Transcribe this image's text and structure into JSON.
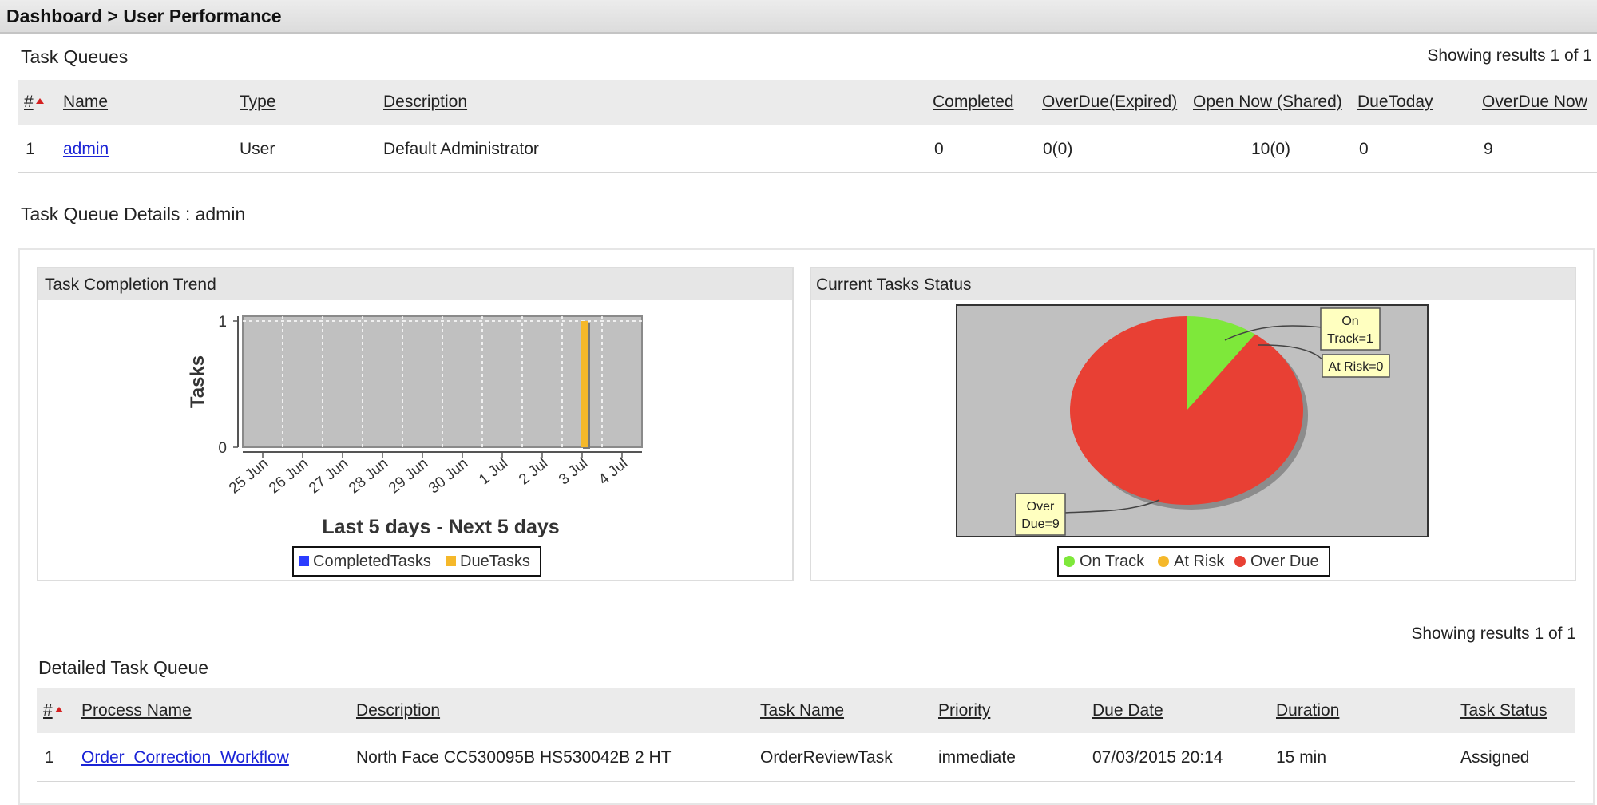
{
  "breadcrumb": {
    "root": "Dashboard",
    "separator": ">",
    "current": "User Performance"
  },
  "task_queues": {
    "title": "Task Queues",
    "results": "Showing results 1 of 1",
    "columns": [
      "#",
      "Name",
      "Type",
      "Description",
      "Completed",
      "OverDue(Expired)",
      "Open Now (Shared)",
      "DueToday",
      "OverDue Now"
    ],
    "rows": [
      {
        "num": "1",
        "name": "admin",
        "type": "User",
        "description": "Default Administrator",
        "completed": "0",
        "overdue_expired": "0(0)",
        "open_now_shared": "10(0)",
        "due_today": "0",
        "overdue_now": "9"
      }
    ]
  },
  "details": {
    "title": "Task Queue Details : admin",
    "trend_panel": {
      "title": "Task Completion Trend"
    },
    "status_panel": {
      "title": "Current Tasks Status"
    }
  },
  "chart_data": [
    {
      "type": "bar",
      "title": "",
      "xlabel": "Last 5 days - Next 5 days",
      "ylabel": "Tasks",
      "categories": [
        "25 Jun",
        "26 Jun",
        "27 Jun",
        "28 Jun",
        "29 Jun",
        "30 Jun",
        "1 Jul",
        "2 Jul",
        "3 Jul",
        "4 Jul"
      ],
      "series": [
        {
          "name": "CompletedTasks",
          "color": "#2b3cff",
          "values": [
            0,
            0,
            0,
            0,
            0,
            0,
            0,
            0,
            0,
            0
          ]
        },
        {
          "name": "DueTasks",
          "color": "#f5b82a",
          "values": [
            0,
            0,
            0,
            0,
            0,
            0,
            0,
            0,
            1,
            0
          ]
        }
      ],
      "yticks": [
        "0",
        "1"
      ],
      "ylim": [
        0,
        1
      ],
      "grid": true,
      "plot_background": "#c0c0c0",
      "legend": "bottom"
    },
    {
      "type": "pie",
      "title": "",
      "slices": [
        {
          "name": "On Track",
          "value": 1,
          "label": "On Track=1",
          "color": "#7ee83a"
        },
        {
          "name": "At Risk",
          "value": 0,
          "label": "At Risk=0",
          "color": "#f5b82a"
        },
        {
          "name": "Over Due",
          "value": 9,
          "label": "Over Due=9",
          "color": "#e84034"
        }
      ],
      "plot_background": "#c0c0c0",
      "legend": "bottom"
    }
  ],
  "detailed_queue": {
    "title": "Detailed Task Queue",
    "results": "Showing results 1 of 1",
    "columns": [
      "#",
      "Process Name",
      "Description",
      "Task Name",
      "Priority",
      "Due Date",
      "Duration",
      "Task Status"
    ],
    "rows": [
      {
        "num": "1",
        "process_name": "Order_Correction_Workflow",
        "description": "North Face CC530095B HS530042B 2 HT",
        "task_name": "OrderReviewTask",
        "priority": "immediate",
        "due_date": "07/03/2015 20:14",
        "duration": "15 min",
        "task_status": "Assigned"
      }
    ]
  }
}
